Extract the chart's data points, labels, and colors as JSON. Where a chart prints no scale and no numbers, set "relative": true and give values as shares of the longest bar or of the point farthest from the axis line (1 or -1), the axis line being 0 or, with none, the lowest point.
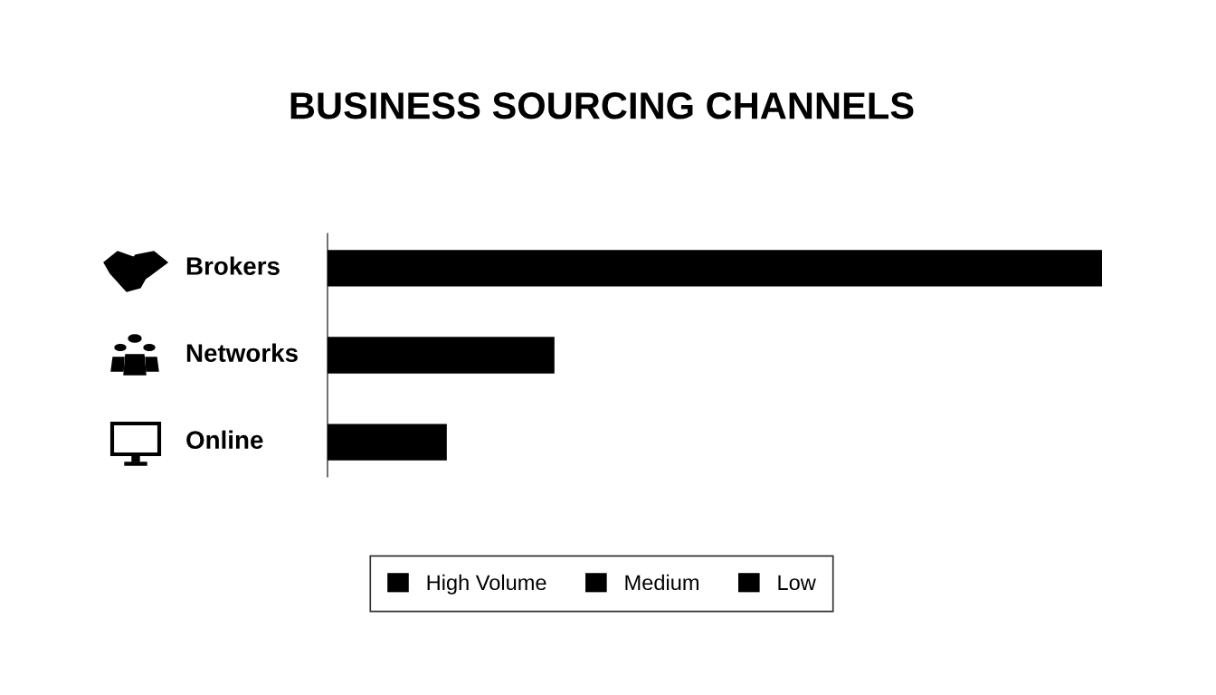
{
  "chart_data": {
    "type": "bar",
    "orientation": "horizontal",
    "relative": true,
    "title": "BUSINESS SOURCING CHANNELS",
    "categories": [
      "Brokers",
      "Networks",
      "Online"
    ],
    "series": [
      {
        "name": "High Volume",
        "color": "#000000",
        "values": [
          1,
          null,
          null
        ]
      },
      {
        "name": "Medium",
        "color": "#000000",
        "values": [
          null,
          0.293,
          null
        ]
      },
      {
        "name": "Low",
        "color": "#000000",
        "values": [
          null,
          null,
          0.154
        ]
      }
    ],
    "legend": "bottom",
    "grid": false
  }
}
